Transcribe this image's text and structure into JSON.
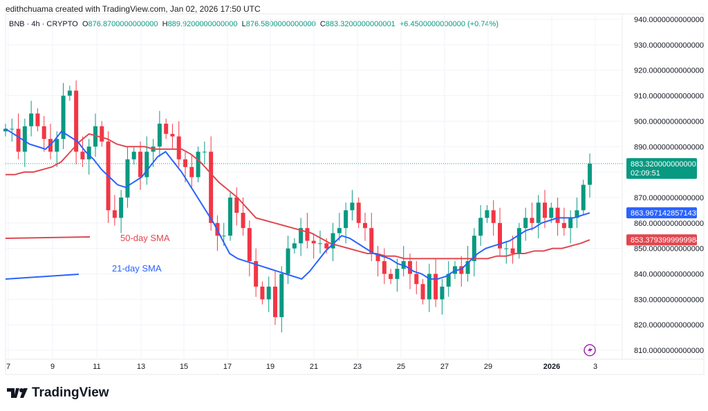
{
  "header": {
    "credit": "edithchuama created with TradingView.com, Jan 02, 2026 17:50 UTC"
  },
  "legend": {
    "symbol": "BNB · 4h · CRYPTO",
    "o_label": "O",
    "o": "876.8700000000000",
    "h_label": "H",
    "h": "889.9200000000000",
    "l_label": "L",
    "l": "876.5800000000000",
    "c_label": "C",
    "c": "883.3200000000001",
    "change": "+6.4500000000000 (+0.74%)"
  },
  "brand": {
    "name": "TradingView",
    "logo_icon": "tradingview-logo-icon"
  },
  "colors": {
    "up": "#089981",
    "down": "#f23645",
    "sma21": "#2962ff",
    "sma50": "#e0474f",
    "last_price": "#089981"
  },
  "chart_data": {
    "type": "candlestick",
    "symbol": "BNB",
    "interval": "4h",
    "ylim": [
      805,
      942
    ],
    "y_ticks": [
      "940.0000000000000",
      "930.0000000000000",
      "920.0000000000000",
      "910.0000000000000",
      "900.0000000000000",
      "890.0000000000000",
      "870.0000000000000",
      "860.0000000000000",
      "850.0000000000000",
      "840.0000000000000",
      "830.0000000000000",
      "820.0000000000000",
      "810.0000000000000"
    ],
    "y_tick_values": [
      940,
      930,
      920,
      910,
      900,
      890,
      870,
      860,
      850,
      840,
      830,
      820,
      810
    ],
    "x_ticks": [
      "7",
      "9",
      "11",
      "13",
      "15",
      "17",
      "19",
      "21",
      "23",
      "25",
      "27",
      "29",
      "2026",
      "3"
    ],
    "closes": [
      897,
      897,
      888,
      898,
      903,
      898,
      893,
      888,
      893,
      910,
      912,
      888,
      885,
      890,
      898,
      892,
      865,
      862,
      870,
      885,
      888,
      878,
      888,
      890,
      899,
      895,
      894,
      885,
      882,
      878,
      888,
      888,
      860,
      855,
      855,
      870,
      864,
      858,
      845,
      835,
      830,
      835,
      823,
      840,
      850,
      852,
      858,
      853,
      852,
      852,
      850,
      856,
      858,
      865,
      868,
      860,
      858,
      848,
      845,
      840,
      838,
      842,
      845,
      840,
      836,
      830,
      840,
      830,
      835,
      840,
      843,
      840,
      845,
      855,
      862,
      865,
      860,
      850,
      850,
      848,
      858,
      862,
      860,
      868,
      862,
      866,
      860,
      858,
      862,
      865,
      875,
      883.32
    ],
    "highs_note_free": true,
    "sma21": {
      "name": "21-day SMA",
      "values": [
        897,
        895,
        893,
        891,
        890,
        889,
        892,
        896,
        894,
        892,
        888,
        885,
        881,
        878,
        875,
        874,
        876,
        878,
        882,
        886,
        888,
        884,
        880,
        875,
        870,
        865,
        860,
        854,
        848,
        846,
        845,
        844,
        843,
        842,
        841,
        840,
        839,
        838,
        841,
        845,
        849,
        852,
        855,
        854,
        852,
        850,
        848,
        847,
        846,
        844,
        843,
        841,
        840,
        838,
        838,
        839,
        841,
        842,
        845,
        848,
        850,
        851,
        852,
        853,
        855,
        857,
        858,
        860,
        861,
        862,
        862,
        862,
        863,
        863.97
      ],
      "last": "863.9671428571435"
    },
    "sma50": {
      "name": "50-day SMA",
      "values": [
        879,
        879,
        880,
        880,
        881,
        882,
        884,
        888,
        892,
        895,
        894,
        893,
        891,
        890,
        890,
        890,
        889,
        889,
        889,
        889,
        887,
        884,
        880,
        876,
        873,
        870,
        866,
        862,
        861,
        860,
        859,
        858,
        857,
        856,
        854,
        852,
        851,
        850,
        849,
        848,
        848,
        847,
        847,
        846,
        846,
        846,
        846,
        846,
        846,
        846,
        846,
        846,
        846,
        847,
        847,
        848,
        848,
        849,
        849,
        850,
        850,
        851,
        852,
        853.38
      ],
      "last": "853.3793999999984"
    },
    "last_price": {
      "value": "883.3200000000001",
      "countdown": "02:09:51"
    }
  }
}
